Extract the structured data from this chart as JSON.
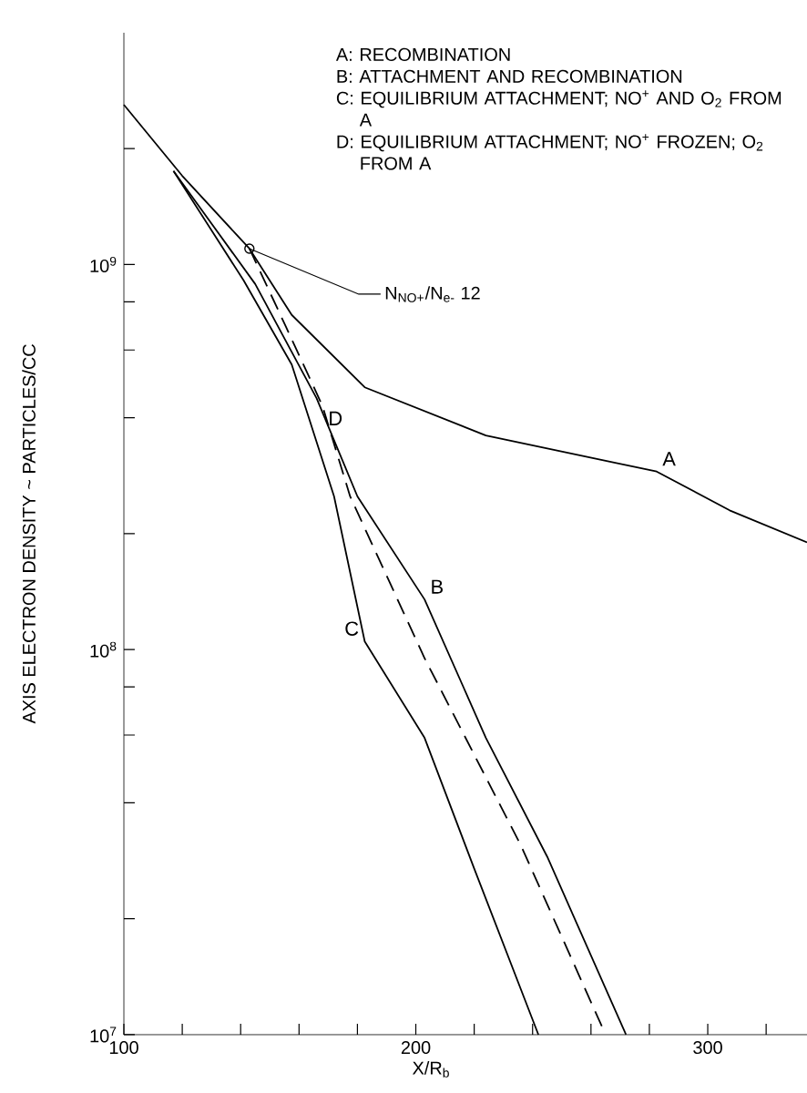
{
  "chart_data": {
    "type": "line",
    "xlabel": "X/R$_{b}$",
    "ylabel": "AXIS ELECTRON DENSITY ~ PARTICLES/CC",
    "log": "y",
    "xlim": [
      100,
      334
    ],
    "ylim": [
      10000000.0,
      4000000000.0
    ],
    "xticks": [
      100,
      {
        "value": 120,
        "label": null
      },
      {
        "value": 140,
        "label": null
      },
      {
        "value": 160,
        "label": null
      },
      {
        "value": 180,
        "label": null
      },
      200,
      {
        "value": 220,
        "label": null
      },
      {
        "value": 240,
        "label": null
      },
      {
        "value": 260,
        "label": null
      },
      {
        "value": 280,
        "label": null
      },
      300,
      {
        "value": 320,
        "label": null
      }
    ],
    "yticks": [
      {
        "value": 10000000.0,
        "label": "10$^{7}$"
      },
      {
        "value": 20000000.0,
        "label": null
      },
      {
        "value": 40000000.0,
        "label": null
      },
      {
        "value": 60000000.0,
        "label": null
      },
      {
        "value": 80000000.0,
        "label": null
      },
      {
        "value": 100000000.0,
        "label": "10$^{8}$"
      },
      {
        "value": 200000000.0,
        "label": null
      },
      {
        "value": 400000000.0,
        "label": null
      },
      {
        "value": 600000000.0,
        "label": null
      },
      {
        "value": 800000000.0,
        "label": null
      },
      {
        "value": 1000000000.0,
        "label": "10$^{9}$"
      },
      {
        "value": 2000000000.0,
        "label": null
      }
    ],
    "grid": false,
    "legend": false,
    "marker": "none",
    "series": [
      {
        "name": "A",
        "color": "#000000",
        "x": [
          100,
          120,
          143,
          157.5,
          182.5,
          224,
          282.5,
          307.5,
          334
        ],
        "values": [
          2600000000.0,
          1700000000.0,
          1100000000.0,
          740000000.0,
          480000000.0,
          360000000.0,
          290000000.0,
          230000000.0,
          190000000.0
        ]
      },
      {
        "name": "B",
        "color": "#000000",
        "x": [
          117,
          145,
          166,
          180,
          203,
          224,
          245,
          272
        ],
        "values": [
          1750000000.0,
          890000000.0,
          450000000.0,
          250000000.0,
          135000000.0,
          59000000.0,
          29000000.0,
          10000000.0
        ]
      },
      {
        "name": "C",
        "color": "#000000",
        "x": [
          117,
          141,
          157.5,
          172,
          182.5,
          203,
          220,
          242
        ],
        "values": [
          1750000000.0,
          910000000.0,
          550000000.0,
          250000000.0,
          105000000.0,
          59000000.0,
          27000000.0,
          10000000.0
        ]
      },
      {
        "name": "D",
        "color": "#000000",
        "line_style": "dashed",
        "x": [
          143,
          155.5,
          168,
          177.5,
          203,
          236,
          265
        ],
        "values": [
          1100000000.0,
          690000000.0,
          430000000.0,
          250000000.0,
          95000000.0,
          31000000.0,
          10000000.0
        ]
      }
    ],
    "annotations": [
      "A: RECOMBINATION",
      "B: ATTACHMENT AND RECOMBINATION",
      "C: EQUILIBRIUM ATTACHMENT; NO$^{+}$ AND O$_{2}$ FROM A",
      "D: EQUILIBRIUM ATTACHMENT; NO$^{+}$ FROZEN; O$_{2}$ FROM A",
      {
        "text": "N$_{NO+}$/N$_{e-}$ 12",
        "x": 143,
        "y": 1100000000.0
      }
    ]
  }
}
